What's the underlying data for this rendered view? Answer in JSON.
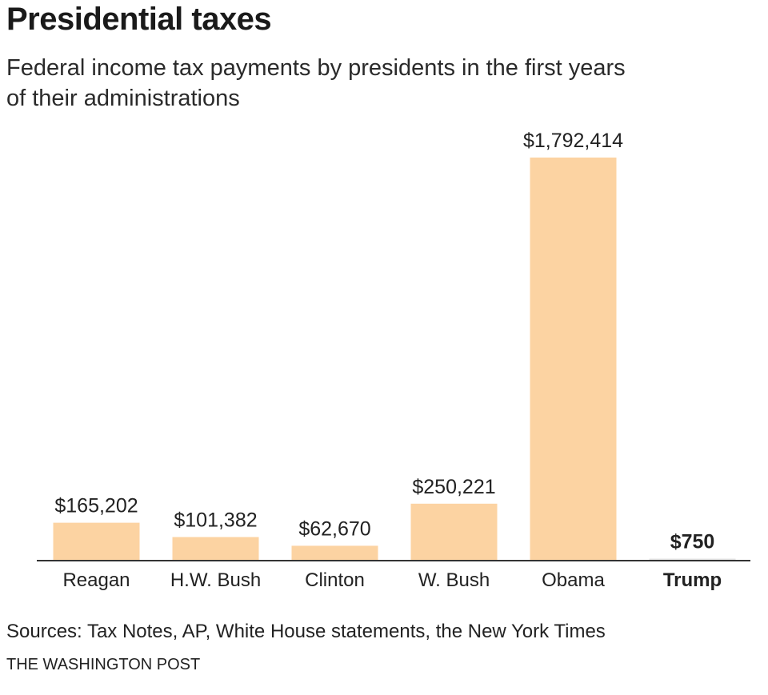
{
  "chart_data": {
    "type": "bar",
    "title": "Presidential taxes",
    "subtitle": "Federal income tax payments by presidents in the first years of their administrations",
    "categories": [
      "Reagan",
      "H.W. Bush",
      "Clinton",
      "W. Bush",
      "Obama",
      "Trump"
    ],
    "values": [
      165202,
      101382,
      62670,
      250221,
      1792414,
      750
    ],
    "value_labels": [
      "$165,202",
      "$101,382",
      "$62,670",
      "$250,221",
      "$1,792,414",
      "$750"
    ],
    "highlight": "Trump",
    "xlabel": "",
    "ylabel": "",
    "ylim": [
      0,
      1792414
    ],
    "grid": false,
    "source": "Sources: Tax Notes, AP, White House statements, the New York Times",
    "credit": "THE WASHINGTON POST"
  },
  "colors": {
    "bar": "#fcd3a2",
    "highlight_bar": "#e6e6e6",
    "axis": "#333333",
    "text": "#222222"
  }
}
